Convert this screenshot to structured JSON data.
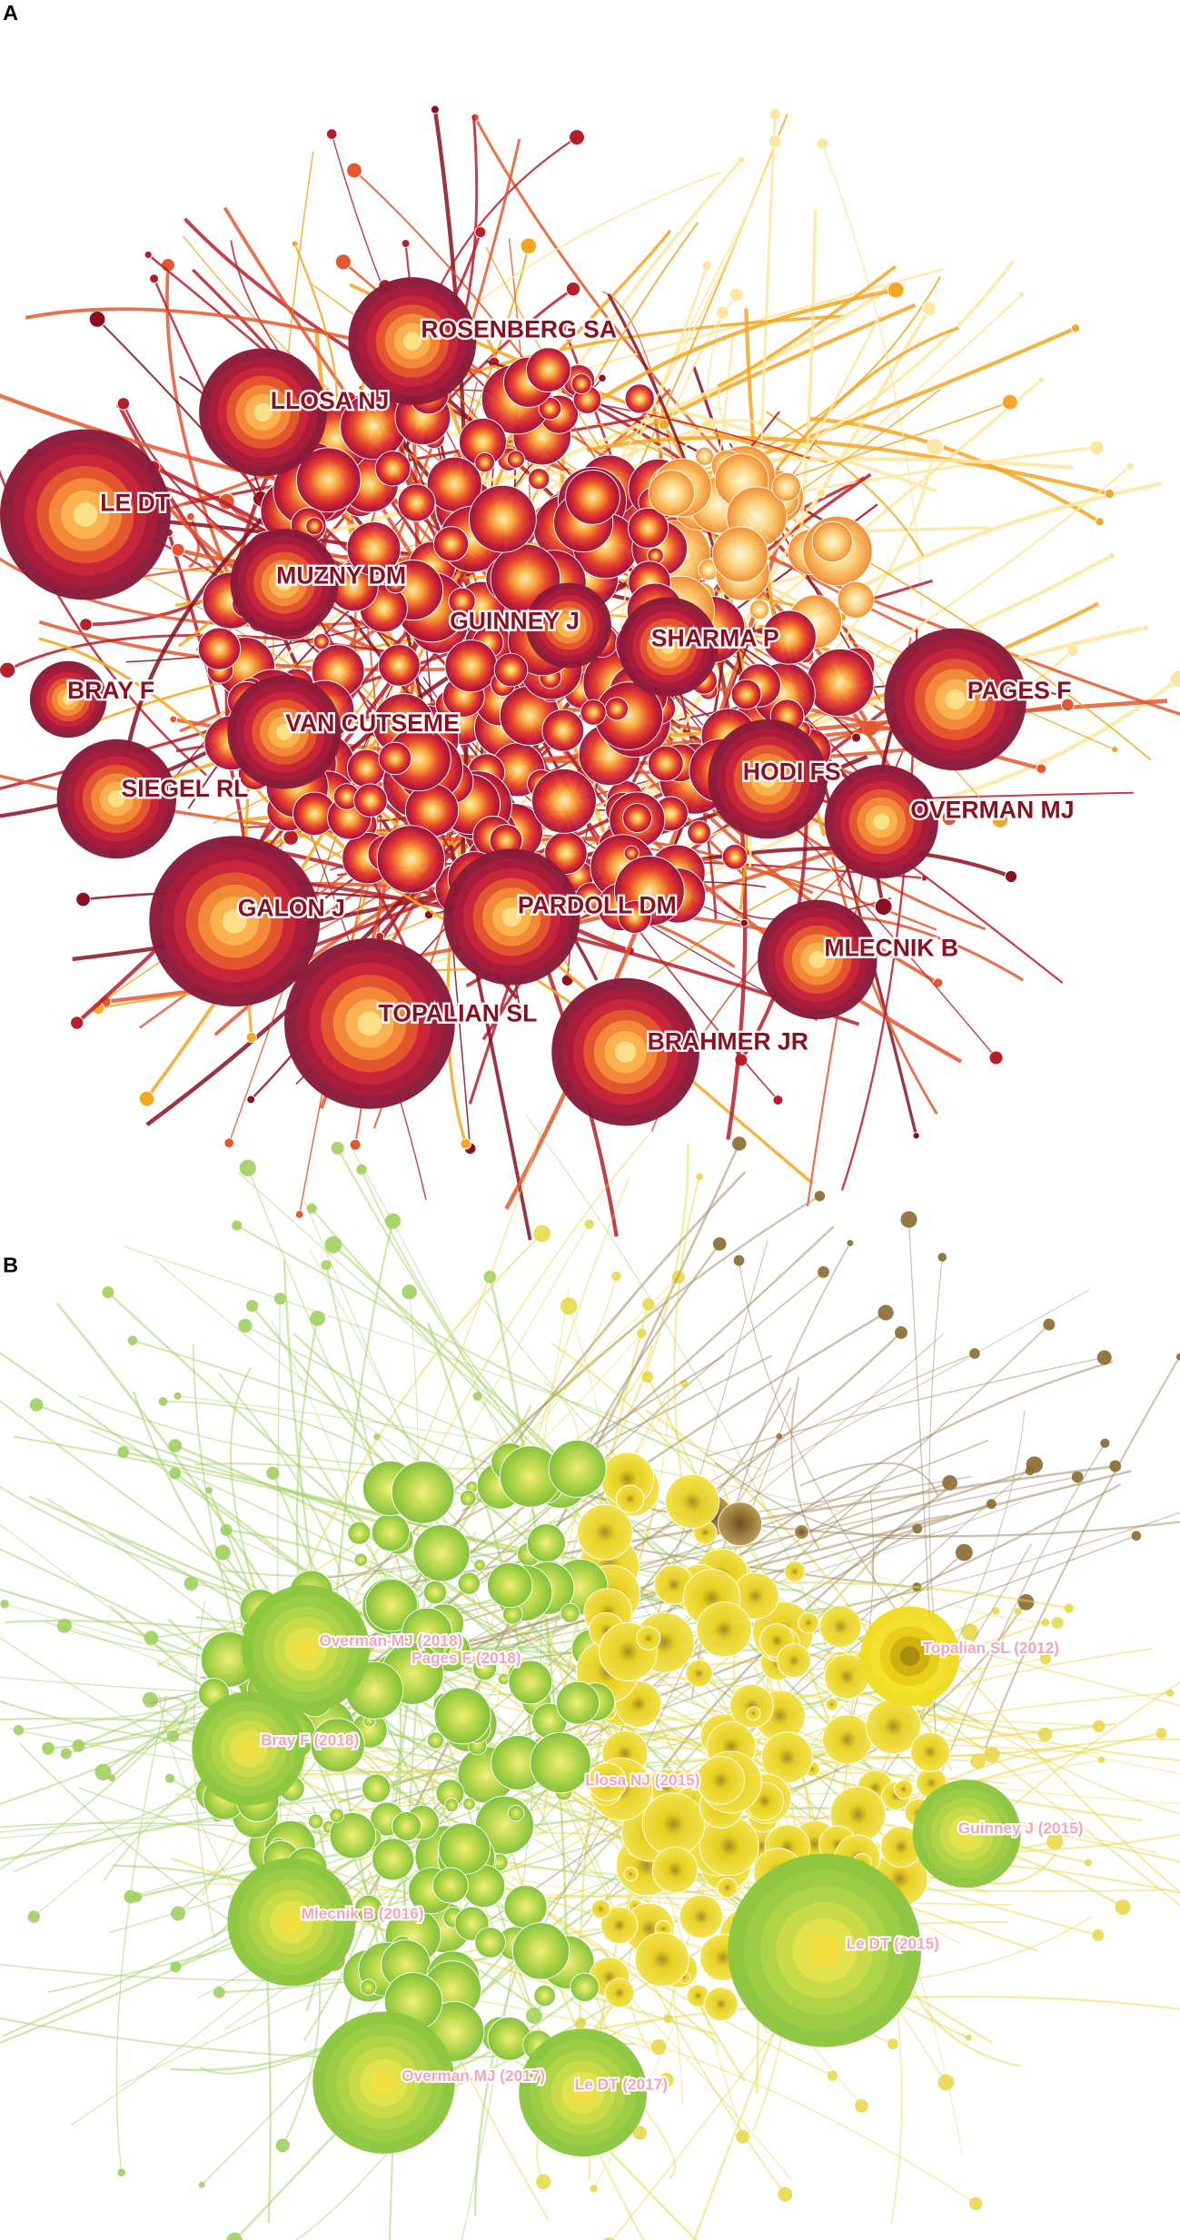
{
  "panels": [
    {
      "label": "A",
      "nodes": [
        {
          "label": "LE DT"
        },
        {
          "label": "ROSENBERG SA"
        },
        {
          "label": "LLOSA NJ"
        },
        {
          "label": "MUZNY DM"
        },
        {
          "label": "GUINNEY J"
        },
        {
          "label": "SHARMA P"
        },
        {
          "label": "BRAY F"
        },
        {
          "label": "PAGES F"
        },
        {
          "label": "VAN CUTSEME"
        },
        {
          "label": "HODI FS"
        },
        {
          "label": "SIEGEL RL"
        },
        {
          "label": "OVERMAN MJ"
        },
        {
          "label": "GALON J"
        },
        {
          "label": "PARDOLL DM"
        },
        {
          "label": "MLECNIK B"
        },
        {
          "label": "TOPALIAN SL"
        },
        {
          "label": "BRAHMER JR"
        }
      ]
    },
    {
      "label": "B",
      "nodes": [
        {
          "label": "Overman MJ (2018)"
        },
        {
          "label": "Pages F (2018)"
        },
        {
          "label": "Topalian SL (2012)"
        },
        {
          "label": "Bray F (2018)"
        },
        {
          "label": "Llosa NJ (2015)"
        },
        {
          "label": "Guinney J (2015)"
        },
        {
          "label": "Mlecnik B (2016)"
        },
        {
          "label": "Le DT (2015)"
        },
        {
          "label": "Overman MJ (2017)"
        },
        {
          "label": "Le DT (2017)"
        }
      ]
    }
  ]
}
